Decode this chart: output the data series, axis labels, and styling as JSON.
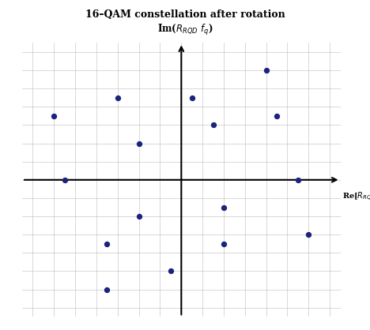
{
  "title1": "16–QAM constellation after rotation",
  "title2": "Im($R_{RQD}\\ f_q$)",
  "xlabel": "Re[$R_{RQD}\\ f_q$]",
  "dot_color": "#1a237e",
  "dot_size": 28,
  "background_color": "#ffffff",
  "grid_color": "#bbbbbb",
  "border_color": "#cccccc",
  "border_linewidth": 1.5,
  "arrow_color": "#000000",
  "arrow_lw": 1.5,
  "xlim": [
    -7.5,
    7.5
  ],
  "ylim": [
    -7.5,
    7.5
  ],
  "points": [
    [
      0.5,
      4.5
    ],
    [
      4.0,
      6.0
    ],
    [
      1.5,
      3.0
    ],
    [
      4.5,
      3.5
    ],
    [
      -3.0,
      4.5
    ],
    [
      -6.0,
      3.5
    ],
    [
      -2.0,
      2.0
    ],
    [
      -5.5,
      0.0
    ],
    [
      5.5,
      0.0
    ],
    [
      2.0,
      -1.5
    ],
    [
      -2.0,
      -2.0
    ],
    [
      -3.5,
      -3.5
    ],
    [
      2.0,
      -3.5
    ],
    [
      6.0,
      -3.0
    ],
    [
      -0.5,
      -5.0
    ],
    [
      -3.5,
      -6.0
    ]
  ]
}
